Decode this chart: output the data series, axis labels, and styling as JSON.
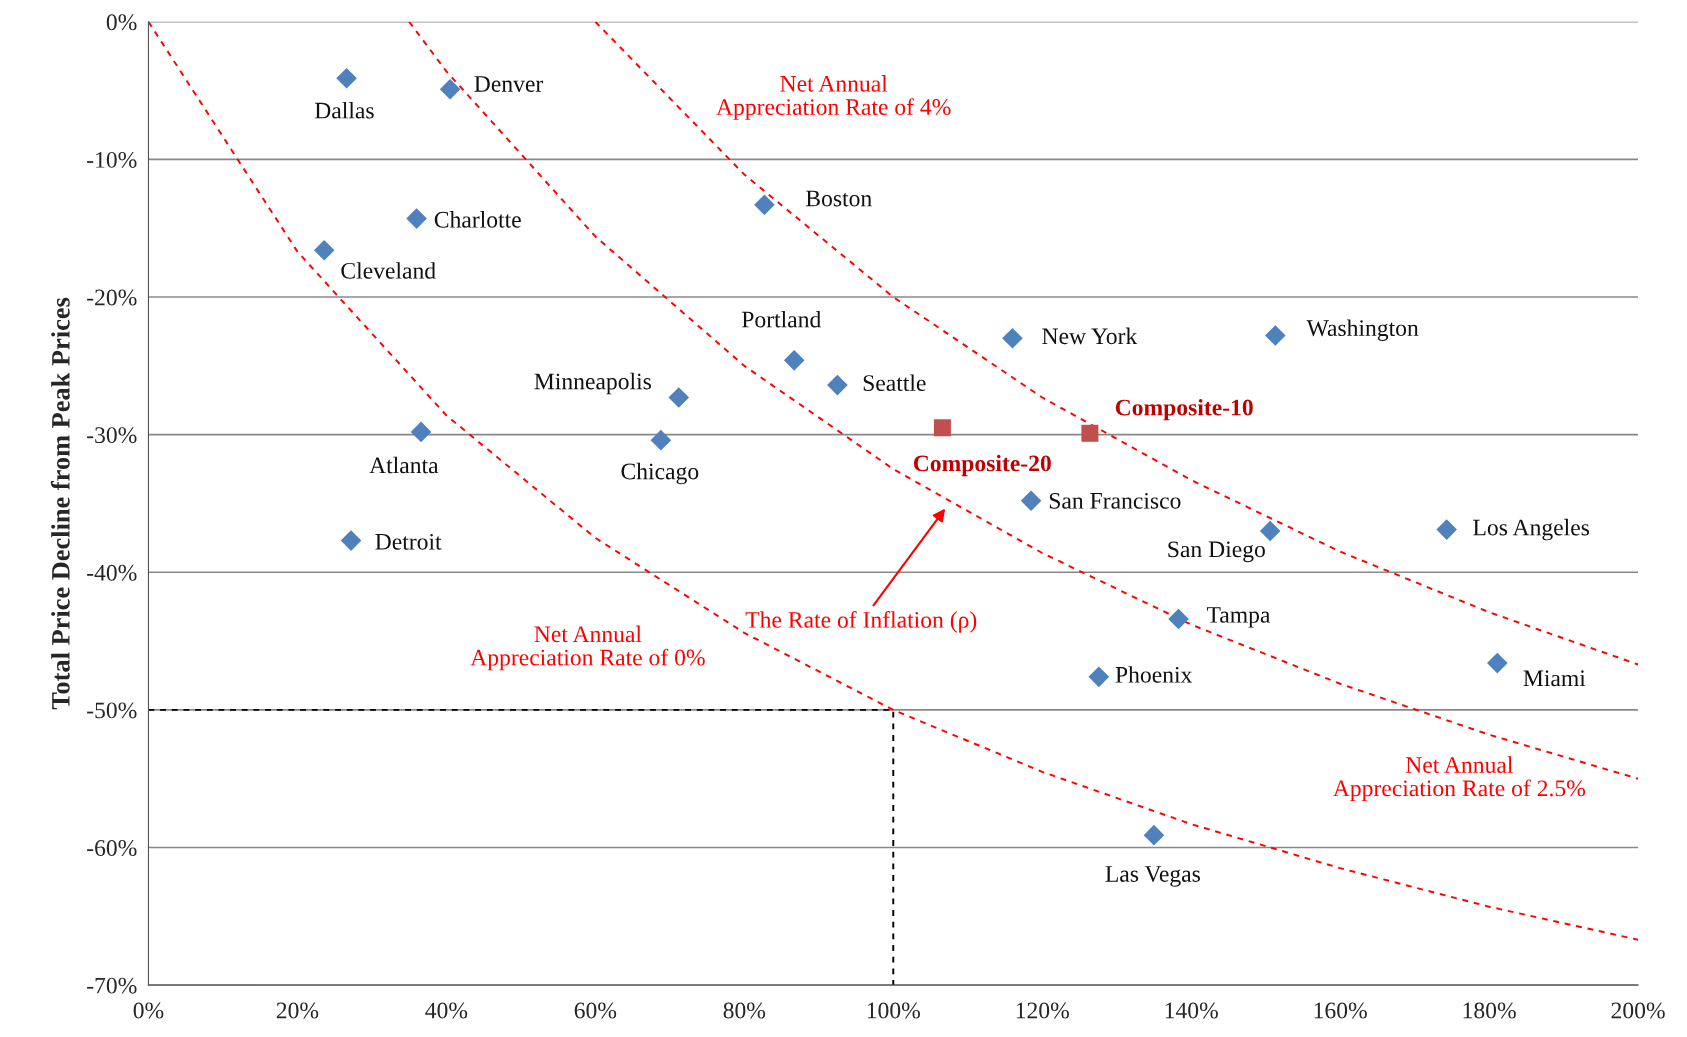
{
  "chart_data": {
    "type": "scatter",
    "ylabel": "Total Price Decline from Peak Prices",
    "xlim": [
      0,
      200
    ],
    "ylim": [
      -70,
      0
    ],
    "xticks": [
      {
        "value": 0,
        "label": "0%"
      },
      {
        "value": 20,
        "label": "20%"
      },
      {
        "value": 40,
        "label": "40%"
      },
      {
        "value": 60,
        "label": "60%"
      },
      {
        "value": 80,
        "label": "80%"
      },
      {
        "value": 100,
        "label": "100%"
      },
      {
        "value": 120,
        "label": "120%"
      },
      {
        "value": 140,
        "label": "140%"
      },
      {
        "value": 160,
        "label": "160%"
      },
      {
        "value": 180,
        "label": "180%"
      },
      {
        "value": 200,
        "label": "200%"
      }
    ],
    "yticks": [
      {
        "value": -70,
        "label": "-70%"
      },
      {
        "value": -60,
        "label": "-60%"
      },
      {
        "value": -50,
        "label": "-50%"
      },
      {
        "value": -40,
        "label": "-40%"
      },
      {
        "value": -30,
        "label": "-30%"
      },
      {
        "value": -20,
        "label": "-20%"
      },
      {
        "value": -10,
        "label": "-10%"
      },
      {
        "value": 0,
        "label": "0%"
      }
    ],
    "grid": "y",
    "legend": false,
    "series": [
      {
        "marker": "diamond",
        "color": "#4f81bd",
        "x": [
          26.6,
          40.5,
          82.7,
          36.0,
          23.6,
          116.0,
          151.3,
          86.7,
          92.5,
          71.2,
          36.6,
          68.8,
          118.5,
          150.6,
          174.3,
          27.2,
          138.3,
          127.6,
          181.1,
          135.0
        ],
        "values": [
          -4.1,
          -4.9,
          -13.3,
          -14.3,
          -16.6,
          -23.0,
          -22.8,
          -24.6,
          -26.4,
          -27.3,
          -29.8,
          -30.4,
          -34.8,
          -37.0,
          -36.9,
          -37.7,
          -43.4,
          -47.6,
          -46.6,
          -59.1
        ],
        "value_labels": [
          "Dallas",
          "Denver",
          "Boston",
          "Charlotte",
          "Cleveland",
          "New York",
          "Washington",
          "Portland",
          "Seattle",
          "Minneapolis",
          "Atlanta",
          "Chicago",
          "San Francisco",
          "San Diego",
          "Los Angeles",
          "Detroit",
          "Tampa",
          "Phoenix",
          "Miami",
          "Las Vegas"
        ]
      },
      {
        "marker": "square",
        "color": "#c0504d",
        "x": [
          106.6,
          126.4
        ],
        "values": [
          -29.5,
          -29.9
        ],
        "value_labels": [
          "Composite-20",
          "Composite-10"
        ]
      },
      {
        "type": "line",
        "name": "Net Annual Appreciation Rate of 0%",
        "color": "#ff0000",
        "line_style": "dashed",
        "x": [
          0,
          20,
          40,
          60,
          80,
          100,
          120,
          140,
          160,
          180,
          200
        ],
        "values": [
          0,
          -16.7,
          -28.6,
          -37.5,
          -44.4,
          -50,
          -54.5,
          -58.3,
          -61.5,
          -64.3,
          -66.7
        ]
      },
      {
        "type": "line",
        "name": "Net Annual Appreciation Rate of 2.5%",
        "color": "#ff0000",
        "line_style": "dashed",
        "x": [
          35,
          40,
          60,
          80,
          100,
          120,
          140,
          160,
          180,
          200
        ],
        "values": [
          0,
          -3.6,
          -15.6,
          -25,
          -32.5,
          -38.6,
          -43.8,
          -48.1,
          -51.8,
          -55
        ]
      },
      {
        "type": "line",
        "name": "Net Annual Appreciation Rate of 4%",
        "color": "#ff0000",
        "line_style": "dashed",
        "x": [
          60,
          80,
          100,
          120,
          140,
          160,
          180,
          200
        ],
        "values": [
          0,
          -11.1,
          -20,
          -27.3,
          -33.3,
          -38.5,
          -42.9,
          -46.7
        ]
      },
      {
        "type": "line",
        "color": "#000000",
        "line_style": "dashed",
        "x": [
          0,
          100,
          100
        ],
        "values": [
          -50,
          -50,
          -70
        ]
      }
    ],
    "annotations": [
      "The Rate of Inflation (ρ)"
    ]
  }
}
